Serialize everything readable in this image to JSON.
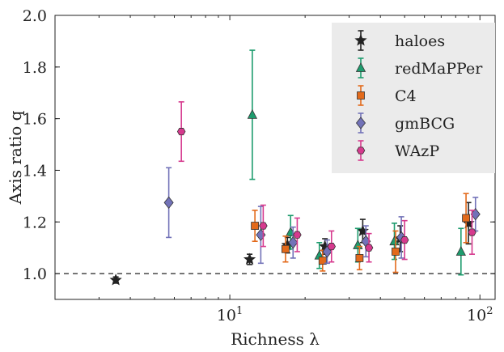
{
  "chart_data": {
    "type": "scatter",
    "title": "",
    "xlabel": "Richness λ",
    "ylabel": "Axis ratio q",
    "xscale": "log",
    "xlim": [
      2,
      115
    ],
    "ylim": [
      0.9,
      2.0
    ],
    "yticks": [
      "1.0",
      "1.2",
      "1.4",
      "1.6",
      "1.8",
      "2.0"
    ],
    "xticks": [
      {
        "value": 10,
        "base": "10",
        "exp": "1"
      },
      {
        "value": 100,
        "base": "10",
        "exp": "2"
      }
    ],
    "grid": false,
    "legend_position": "top-right",
    "reference_line": {
      "y": 1.0,
      "style": "dashed"
    },
    "series": [
      {
        "name": "haloes",
        "marker": "star",
        "color": "#222222",
        "points": [
          {
            "x": 3.5,
            "y": 0.975,
            "err": 0.012
          },
          {
            "x": 12.0,
            "y": 1.055,
            "err": 0.02
          },
          {
            "x": 17.0,
            "y": 1.11,
            "err": 0.03
          },
          {
            "x": 24.0,
            "y": 1.105,
            "err": 0.03
          },
          {
            "x": 34.0,
            "y": 1.165,
            "err": 0.045
          },
          {
            "x": 48.0,
            "y": 1.135,
            "err": 0.05
          },
          {
            "x": 90.0,
            "y": 1.195,
            "err": 0.08
          }
        ]
      },
      {
        "name": "redMaPPer",
        "marker": "triangle",
        "color": "#1e9c6e",
        "points": [
          {
            "x": 12.3,
            "y": 1.615,
            "err": 0.25
          },
          {
            "x": 17.5,
            "y": 1.16,
            "err": 0.065
          },
          {
            "x": 22.8,
            "y": 1.07,
            "err": 0.05
          },
          {
            "x": 32.5,
            "y": 1.11,
            "err": 0.065
          },
          {
            "x": 45.5,
            "y": 1.125,
            "err": 0.07
          },
          {
            "x": 84.0,
            "y": 1.085,
            "err": 0.09
          }
        ]
      },
      {
        "name": "C4",
        "marker": "square",
        "color": "#e36a1b",
        "points": [
          {
            "x": 12.6,
            "y": 1.185,
            "err": 0.06
          },
          {
            "x": 16.7,
            "y": 1.095,
            "err": 0.05
          },
          {
            "x": 23.5,
            "y": 1.05,
            "err": 0.04
          },
          {
            "x": 33.0,
            "y": 1.06,
            "err": 0.045
          },
          {
            "x": 46.0,
            "y": 1.085,
            "err": 0.08
          },
          {
            "x": 88.0,
            "y": 1.215,
            "err": 0.095
          }
        ]
      },
      {
        "name": "gmBCG",
        "marker": "diamond",
        "color": "#7272b8",
        "points": [
          {
            "x": 5.7,
            "y": 1.275,
            "err": 0.135
          },
          {
            "x": 13.3,
            "y": 1.15,
            "err": 0.11
          },
          {
            "x": 17.9,
            "y": 1.12,
            "err": 0.06
          },
          {
            "x": 24.5,
            "y": 1.085,
            "err": 0.045
          },
          {
            "x": 35.0,
            "y": 1.125,
            "err": 0.06
          },
          {
            "x": 48.5,
            "y": 1.14,
            "err": 0.08
          },
          {
            "x": 96.0,
            "y": 1.23,
            "err": 0.065
          }
        ]
      },
      {
        "name": "WAzP",
        "marker": "hexagon",
        "color": "#d63a8e",
        "points": [
          {
            "x": 6.4,
            "y": 1.55,
            "err": 0.115
          },
          {
            "x": 13.6,
            "y": 1.185,
            "err": 0.08
          },
          {
            "x": 18.6,
            "y": 1.15,
            "err": 0.065
          },
          {
            "x": 25.5,
            "y": 1.105,
            "err": 0.06
          },
          {
            "x": 36.0,
            "y": 1.1,
            "err": 0.055
          },
          {
            "x": 50.0,
            "y": 1.13,
            "err": 0.075
          },
          {
            "x": 93.0,
            "y": 1.16,
            "err": 0.085
          }
        ]
      }
    ]
  }
}
